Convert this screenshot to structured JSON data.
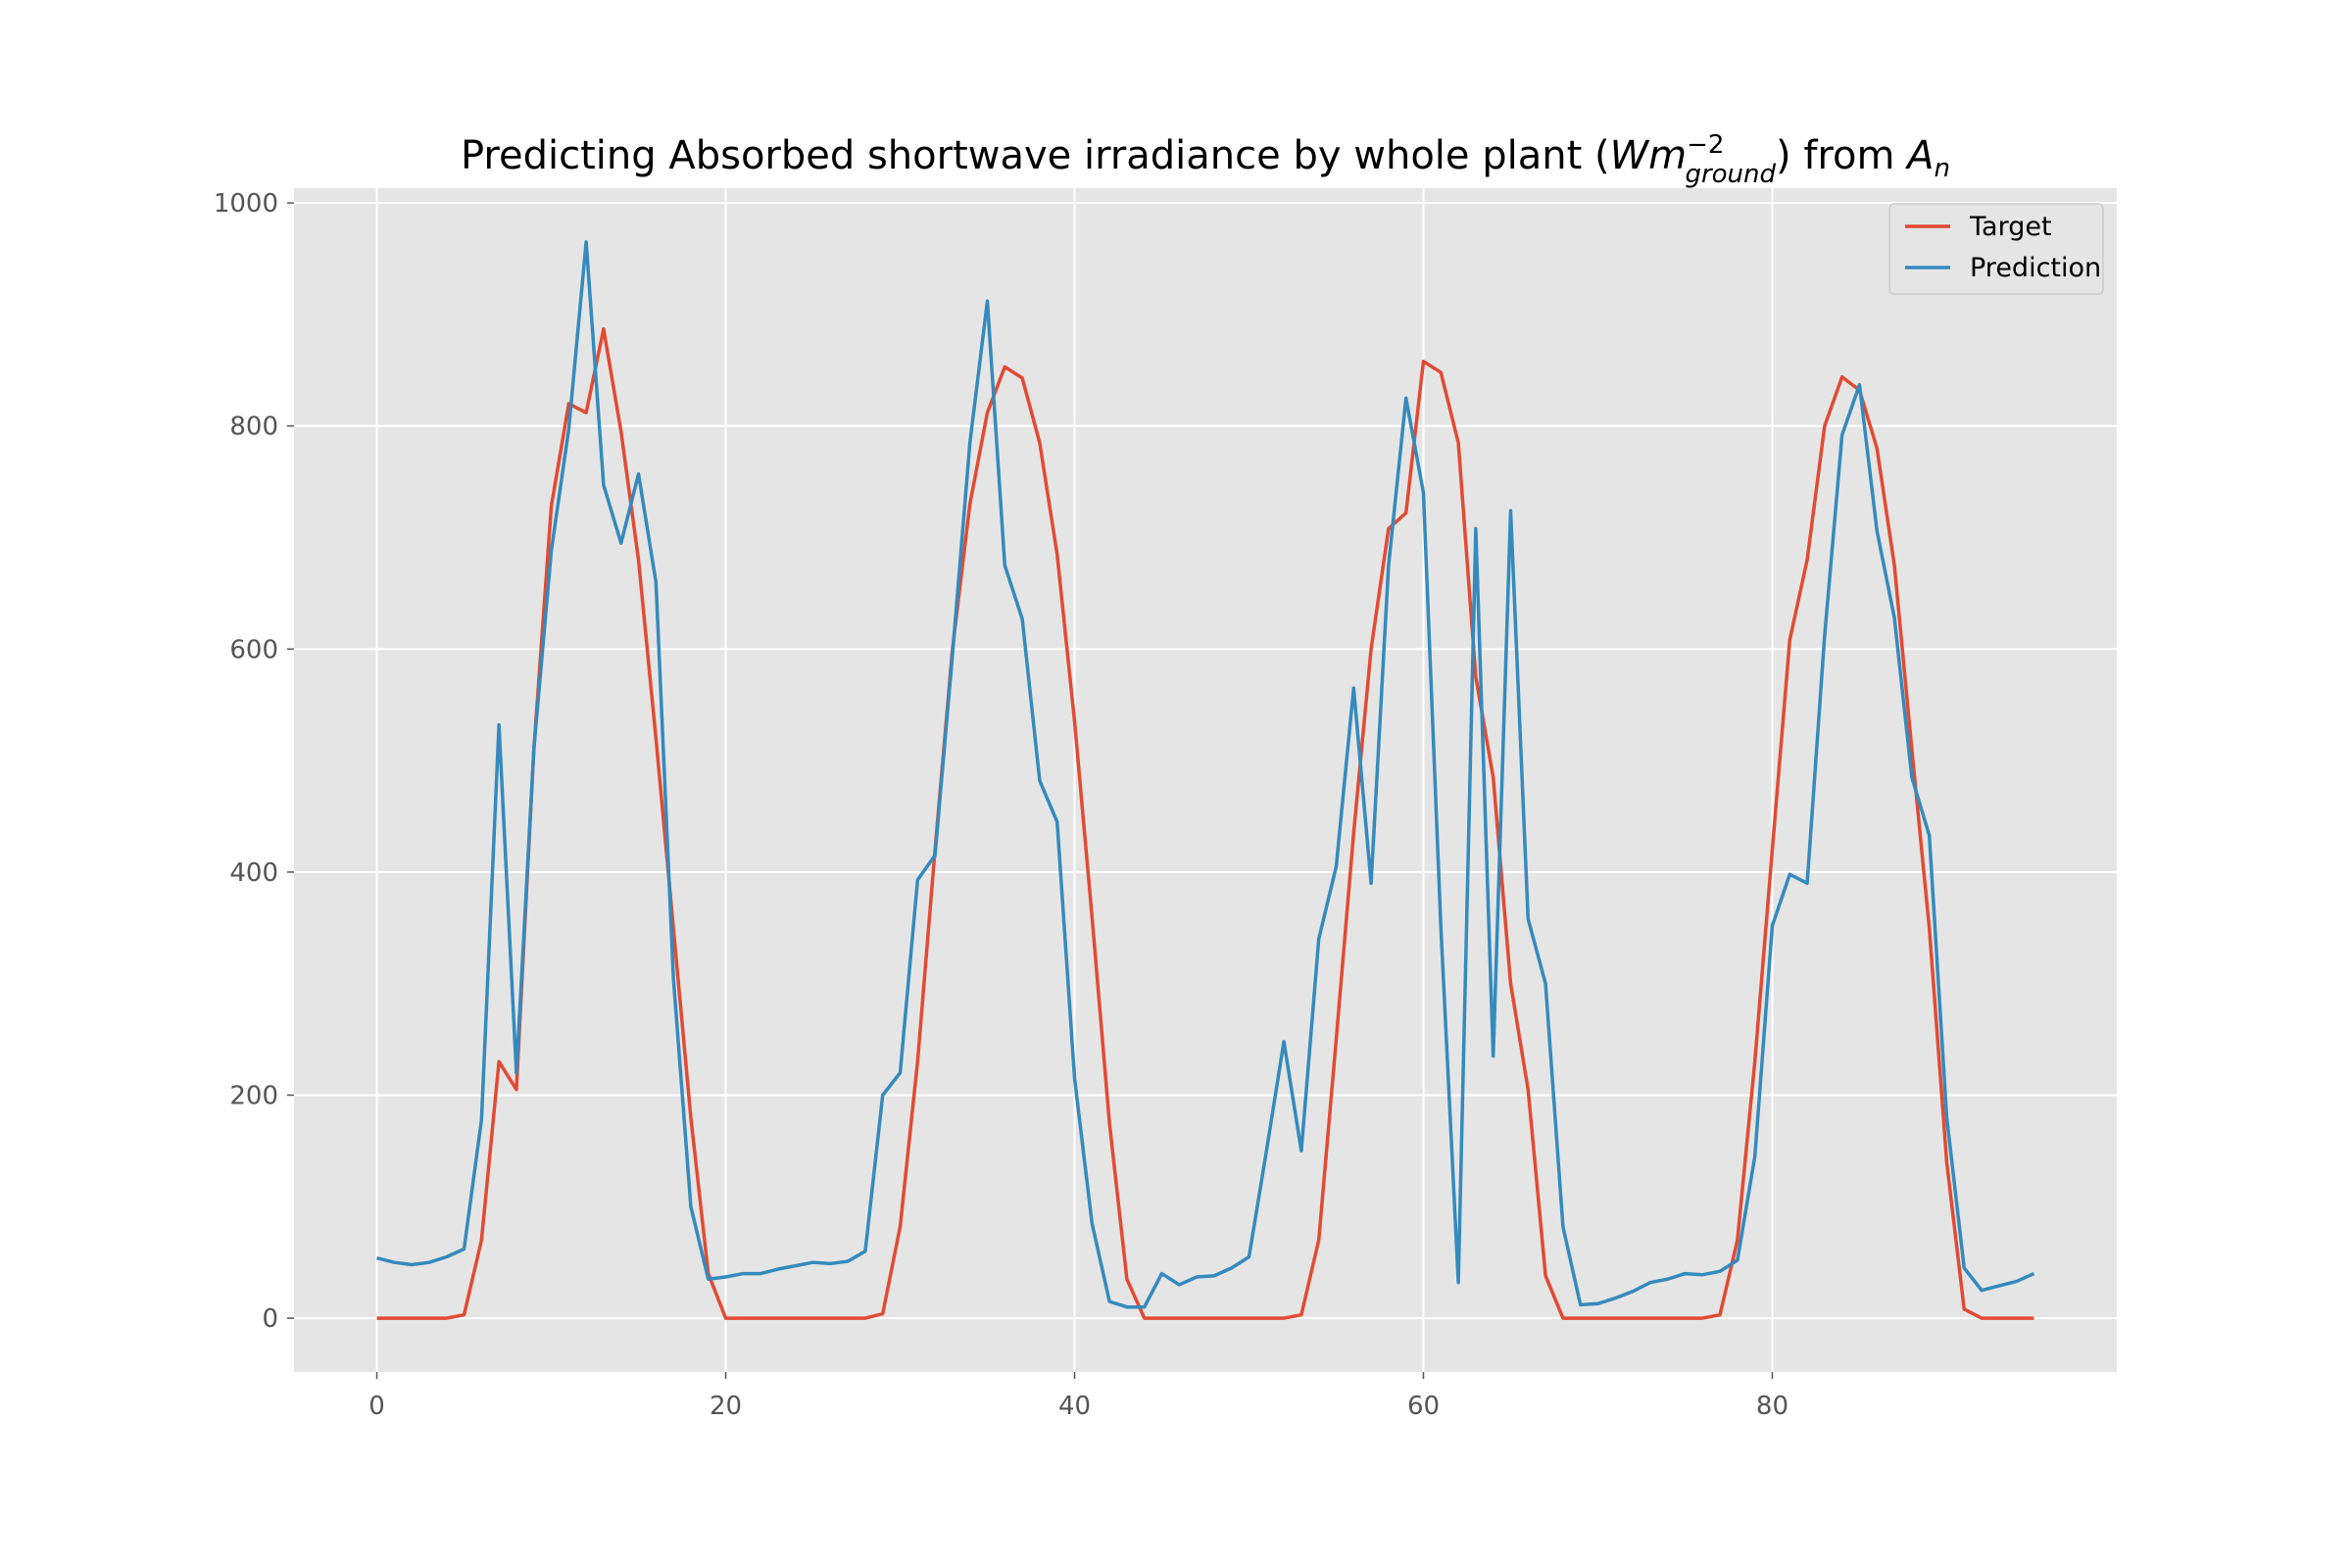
{
  "chart_data": {
    "type": "line",
    "title": {
      "prefix": "Predicting Absorbed shortwave irradiance by whole plant (",
      "var_main": "Wm",
      "var_sup": "−2",
      "var_sub": "ground",
      "middle": ") from ",
      "an_main": "A",
      "an_sub": "n"
    },
    "xlabel": "",
    "ylabel": "",
    "xlim": [
      -4.75,
      99.75
    ],
    "ylim": [
      -48.25,
      1013.25
    ],
    "xticks": [
      0,
      20,
      40,
      60,
      80
    ],
    "xtick_labels": [
      "0",
      "20",
      "40",
      "60",
      "80"
    ],
    "yticks": [
      0,
      200,
      400,
      600,
      800,
      1000
    ],
    "ytick_labels": [
      "0",
      "200",
      "400",
      "600",
      "800",
      "1000"
    ],
    "grid": true,
    "legend_position": "top-right",
    "series": [
      {
        "name": "Target",
        "color": "#E24A33",
        "values": [
          0,
          0,
          0,
          0,
          0,
          3,
          70,
          230,
          205,
          510,
          728,
          820,
          812,
          887,
          795,
          680,
          520,
          350,
          180,
          40,
          0,
          0,
          0,
          0,
          0,
          0,
          0,
          0,
          0,
          4,
          82,
          230,
          420,
          600,
          730,
          812,
          853,
          843,
          785,
          685,
          535,
          360,
          175,
          35,
          0,
          0,
          0,
          0,
          0,
          0,
          0,
          0,
          0,
          3,
          70,
          250,
          435,
          600,
          708,
          722,
          858,
          848,
          785,
          575,
          485,
          300,
          205,
          38,
          0,
          0,
          0,
          0,
          0,
          0,
          0,
          0,
          0,
          3,
          70,
          230,
          420,
          608,
          680,
          800,
          844,
          832,
          780,
          675,
          510,
          350,
          140,
          8,
          0,
          0,
          0,
          0
        ]
      },
      {
        "name": "Prediction",
        "color": "#348ABD",
        "values": [
          54,
          50,
          48,
          50,
          55,
          62,
          178,
          532,
          220,
          510,
          688,
          797,
          965,
          747,
          695,
          757,
          660,
          305,
          100,
          35,
          37,
          40,
          40,
          44,
          47,
          50,
          49,
          51,
          60,
          200,
          220,
          393,
          415,
          595,
          785,
          912,
          675,
          627,
          482,
          445,
          215,
          85,
          15,
          10,
          10,
          40,
          30,
          37,
          38,
          45,
          55,
          150,
          248,
          150,
          340,
          405,
          565,
          390,
          675,
          825,
          740,
          350,
          32,
          708,
          235,
          724,
          358,
          300,
          82,
          12,
          13,
          18,
          24,
          32,
          35,
          40,
          39,
          42,
          52,
          145,
          352,
          398,
          390,
          612,
          792,
          837,
          706,
          628,
          485,
          433,
          180,
          45,
          25,
          29,
          33,
          40
        ]
      }
    ]
  }
}
